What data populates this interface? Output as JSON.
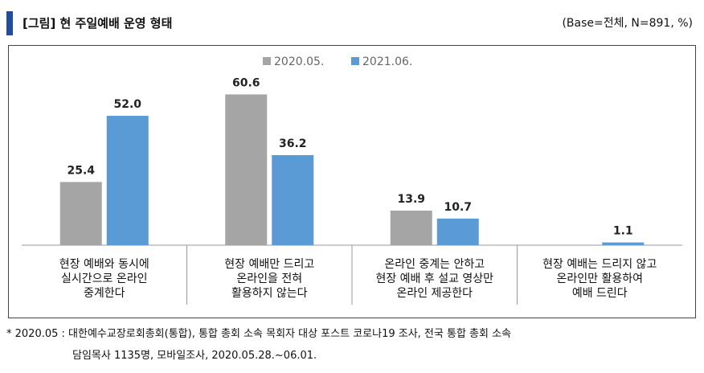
{
  "header": {
    "title": "[그림] 현 주일예배 운영 형태",
    "base_note": "(Base=전체, N=891, %)",
    "accent_color": "#1f4e9c"
  },
  "chart_data": {
    "type": "bar",
    "categories": [
      [
        "현장 예배와 동시에",
        "실시간으로 온라인",
        "중계한다"
      ],
      [
        "현장 예배만 드리고",
        "온라인을 전혀",
        "활용하지 않는다"
      ],
      [
        "온라인 중계는 안하고",
        "현장 예배 후 설교 영상만",
        "온라인 제공한다"
      ],
      [
        "현장 예배는 드리지 않고",
        "온라인만 활용하여",
        "예배 드린다"
      ]
    ],
    "series": [
      {
        "name": "2020.05.",
        "color": "#a5a5a5",
        "values": [
          25.4,
          60.6,
          13.9,
          null
        ]
      },
      {
        "name": "2021.06.",
        "color": "#5b9bd5",
        "values": [
          52.0,
          36.2,
          10.7,
          1.1
        ]
      }
    ],
    "ylim": [
      0,
      65
    ],
    "grid": false,
    "legend_position": "top-center",
    "value_labels": [
      [
        "25.4",
        "60.6",
        "13.9",
        ""
      ],
      [
        "52.0",
        "36.2",
        "10.7",
        "1.1"
      ]
    ]
  },
  "footnote": {
    "line1": "* 2020.05 : 대한예수교장로회총회(통합), 통합 총회 소속 목회자 대상 포스트 코로나19 조사, 전국 통합 총회 소속",
    "line2": "담임목사 1135명, 모바일조사, 2020.05.28.~06.01."
  }
}
